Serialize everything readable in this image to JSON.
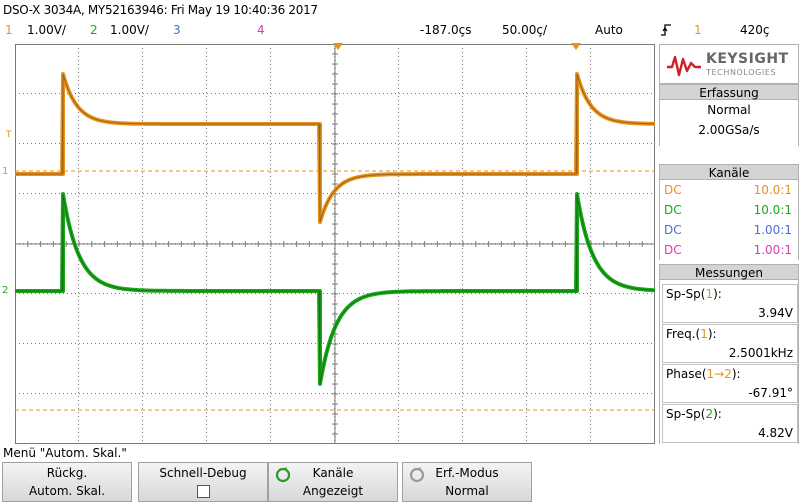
{
  "title": "DSO-X 3034A, MY52163946: Fri May 19 10:40:36 2017",
  "status": {
    "ch1_num": "1",
    "ch1_scale": "1.00V/",
    "ch2_num": "2",
    "ch2_scale": "1.00V/",
    "ch3_num": "3",
    "ch4_num": "4",
    "trigger_pos": "-187.0çs",
    "timebase": "50.00ç/",
    "mode": "Auto",
    "trig_slope_icon": "rising-edge-icon",
    "trig_src": "1",
    "trig_level": "420ç"
  },
  "logo": {
    "brand": "KEYSIGHT",
    "sub": "TECHNOLOGIES"
  },
  "acquisition": {
    "header": "Erfassung",
    "mode": "Normal",
    "rate": "2.00GSa/s"
  },
  "channels": {
    "header": "Kanäle",
    "items": [
      {
        "coupling": "DC",
        "probe": "10.0:1",
        "color": "#e8921a"
      },
      {
        "coupling": "DC",
        "probe": "10.0:1",
        "color": "#1aa81a"
      },
      {
        "coupling": "DC",
        "probe": "1.00:1",
        "color": "#4a6fd0"
      },
      {
        "coupling": "DC",
        "probe": "1.00:1",
        "color": "#d040b0"
      }
    ]
  },
  "measurements": {
    "header": "Messungen",
    "items": [
      {
        "label_pre": "Sp-Sp(",
        "label_ch": "1",
        "label_post": "):",
        "value": "3.94V"
      },
      {
        "label_pre": "Freq.(",
        "label_ch": "1",
        "label_post": "):",
        "value": "2.5001kHz"
      },
      {
        "label_pre": "Phase(",
        "label_ch": "1→2",
        "label_post": "):",
        "value": "-67.91°"
      },
      {
        "label_pre": "Sp-Sp(",
        "label_ch": "2",
        "label_post": "):",
        "value": "4.82V"
      }
    ]
  },
  "menu_title": "Menü \"Autom. Skal.\"",
  "softkeys": [
    {
      "line1": "Rückg.",
      "line2": "Autom. Skal."
    },
    {
      "line1": "Schnell-Debug",
      "line2": ""
    },
    {
      "line1": "Kanäle",
      "line2": "Angezeigt"
    },
    {
      "line1": "Erf.-Modus",
      "line2": "Normal"
    }
  ],
  "colors": {
    "ch1": "#e8921a",
    "ch2": "#1aa81a",
    "ch3": "#4a6fd0",
    "ch4": "#d040b0",
    "grid": "#7a7a7a"
  },
  "markers": {
    "ch1": "1",
    "ch2": "2",
    "trigger": "T"
  }
}
